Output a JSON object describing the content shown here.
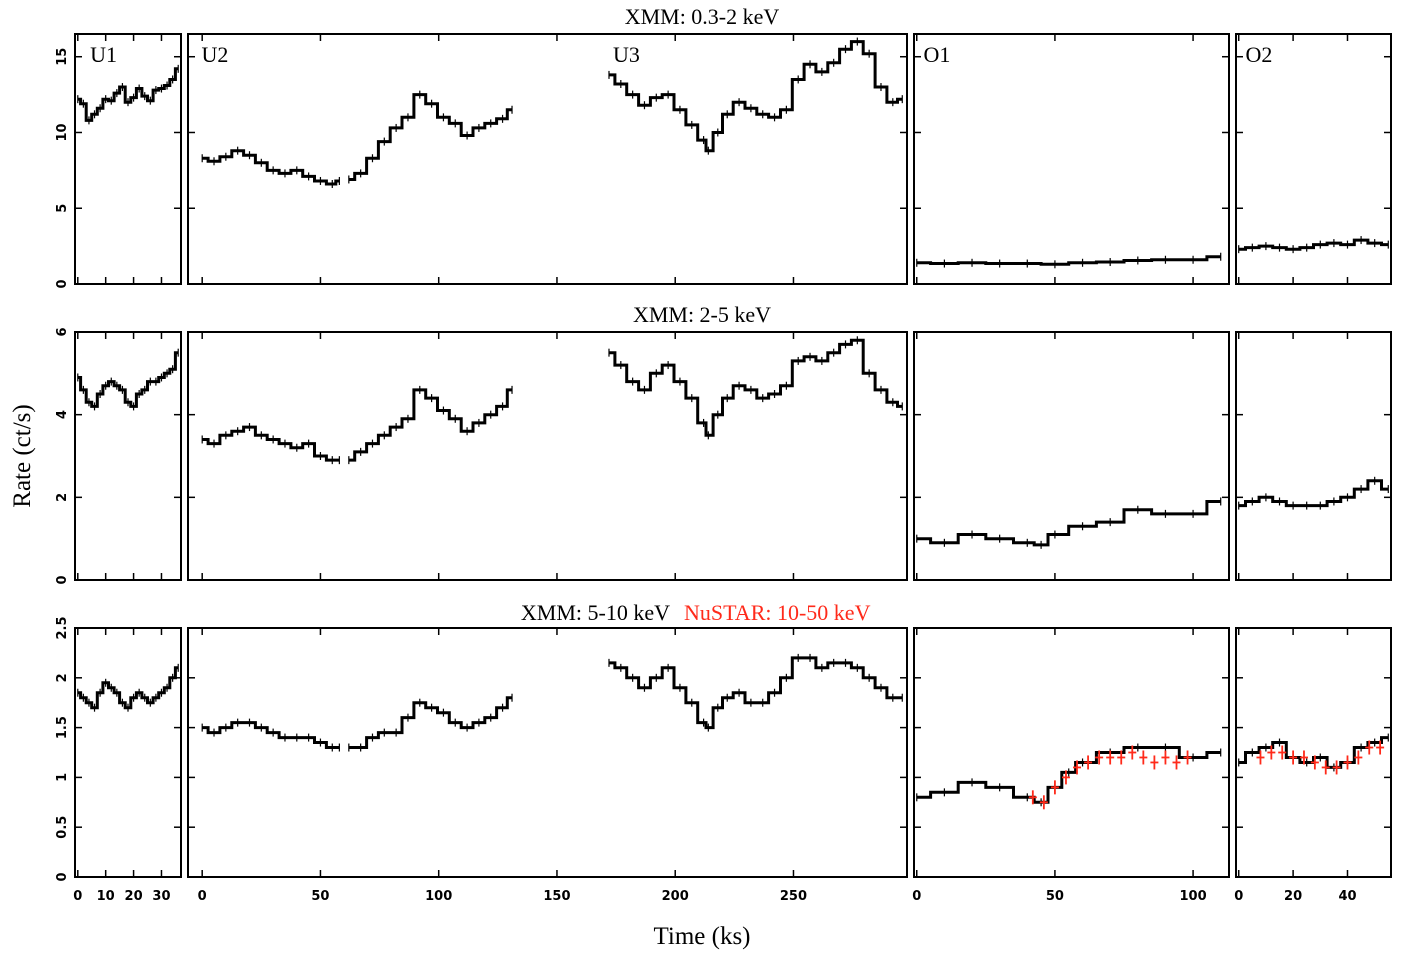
{
  "chart_data": {
    "type": "line",
    "x_label": "Time (ks)",
    "y_label": "Rate (ct/s)",
    "colors": {
      "xmm": "#000000",
      "nustar": "#ff2a1a"
    },
    "columns": [
      {
        "id": "U",
        "xlim": [
          -1,
          37
        ],
        "ticks": [
          0,
          10,
          20,
          30
        ],
        "tick_labels": [
          "0",
          "10",
          "20",
          "30"
        ]
      },
      {
        "id": "U23",
        "xlim": [
          -6,
          298
        ],
        "ticks": [
          0,
          50,
          100,
          150,
          200,
          250
        ],
        "tick_labels": [
          "0",
          "50",
          "100",
          "150",
          "200",
          "250"
        ]
      },
      {
        "id": "O1",
        "xlim": [
          -1,
          113
        ],
        "ticks": [
          0,
          50,
          100
        ],
        "tick_labels": [
          "0",
          "50",
          "100"
        ]
      },
      {
        "id": "O2",
        "xlim": [
          -1,
          56
        ],
        "ticks": [
          0,
          20,
          40
        ],
        "tick_labels": [
          "0",
          "20",
          "40"
        ]
      }
    ],
    "rows": [
      {
        "title": "XMM: 0.3-2 keV",
        "title_extra": "",
        "ylim": [
          0,
          16.5
        ],
        "yticks": [
          0,
          5,
          10,
          15
        ],
        "ytick_labels": [
          "0",
          "5",
          "10",
          "15"
        ],
        "segment_labels": [
          {
            "text": "U1",
            "column": 0,
            "x": 3
          },
          {
            "text": "U2",
            "column": 1,
            "x": -2
          },
          {
            "text": "U3",
            "column": 1,
            "x": 172
          },
          {
            "text": "O1",
            "column": 2,
            "x": 1
          },
          {
            "text": "O2",
            "column": 3,
            "x": 1
          }
        ],
        "series": [
          {
            "column": 0,
            "x": [
              0,
              2,
              4,
              6,
              8,
              10,
              12,
              14,
              16,
              18,
              20,
              22,
              24,
              26,
              28,
              30,
              32,
              34,
              36
            ],
            "y": [
              12.2,
              11.9,
              10.8,
              11.2,
              11.6,
              12.2,
              12.1,
              12.6,
              13.0,
              12.0,
              12.3,
              12.9,
              12.4,
              12.1,
              12.8,
              12.9,
              13.1,
              13.5,
              14.2
            ]
          },
          {
            "column": 1,
            "x": [
              0,
              5,
              10,
              15,
              20,
              25,
              30,
              35,
              40,
              45,
              50,
              55,
              58
            ],
            "y": [
              8.3,
              8.1,
              8.4,
              8.8,
              8.5,
              8.0,
              7.5,
              7.3,
              7.5,
              7.1,
              6.8,
              6.6,
              6.8
            ]
          },
          {
            "column": 1,
            "x": [
              62,
              67,
              72,
              77,
              82,
              87,
              92,
              97,
              102,
              107,
              112,
              117,
              122,
              127,
              131
            ],
            "y": [
              6.9,
              7.3,
              8.3,
              9.4,
              10.3,
              11.0,
              12.5,
              11.9,
              11.0,
              10.6,
              9.8,
              10.3,
              10.6,
              10.9,
              11.5
            ]
          },
          {
            "column": 1,
            "x": [
              172,
              177,
              182,
              187,
              192,
              197,
              202,
              207,
              212,
              214,
              218,
              222,
              227,
              232,
              237,
              242,
              247,
              252,
              257,
              262,
              267,
              272,
              277,
              282,
              287,
              292,
              296
            ],
            "y": [
              13.8,
              13.2,
              12.5,
              11.8,
              12.3,
              12.5,
              11.5,
              10.5,
              9.5,
              8.8,
              10.0,
              11.2,
              12.0,
              11.6,
              11.2,
              11.0,
              11.5,
              13.5,
              14.5,
              14.0,
              14.6,
              15.5,
              16.0,
              15.2,
              13.0,
              12.0,
              12.2
            ]
          },
          {
            "column": 2,
            "x": [
              0,
              10,
              20,
              30,
              40,
              50,
              60,
              70,
              80,
              90,
              100,
              110
            ],
            "y": [
              1.4,
              1.35,
              1.4,
              1.35,
              1.35,
              1.3,
              1.4,
              1.45,
              1.55,
              1.6,
              1.6,
              1.8
            ]
          },
          {
            "column": 3,
            "x": [
              0,
              5,
              10,
              15,
              20,
              25,
              30,
              35,
              40,
              45,
              50,
              55
            ],
            "y": [
              2.3,
              2.4,
              2.5,
              2.4,
              2.3,
              2.4,
              2.6,
              2.7,
              2.6,
              2.9,
              2.7,
              2.6
            ]
          }
        ]
      },
      {
        "title": "XMM: 2-5 keV",
        "title_extra": "",
        "ylim": [
          0,
          6
        ],
        "yticks": [
          0,
          2,
          4,
          6
        ],
        "ytick_labels": [
          "0",
          "2",
          "4",
          "6"
        ],
        "segment_labels": [],
        "series": [
          {
            "column": 0,
            "x": [
              0,
              2,
              4,
              6,
              8,
              10,
              12,
              14,
              16,
              18,
              20,
              22,
              24,
              26,
              28,
              30,
              32,
              34,
              36
            ],
            "y": [
              4.9,
              4.6,
              4.3,
              4.2,
              4.5,
              4.7,
              4.8,
              4.7,
              4.6,
              4.3,
              4.2,
              4.5,
              4.6,
              4.8,
              4.8,
              4.9,
              5.0,
              5.1,
              5.5
            ]
          },
          {
            "column": 1,
            "x": [
              0,
              5,
              10,
              15,
              20,
              25,
              30,
              35,
              40,
              45,
              50,
              55,
              58
            ],
            "y": [
              3.4,
              3.3,
              3.5,
              3.6,
              3.7,
              3.5,
              3.4,
              3.3,
              3.2,
              3.3,
              3.0,
              2.9,
              2.9
            ]
          },
          {
            "column": 1,
            "x": [
              62,
              67,
              72,
              77,
              82,
              87,
              92,
              97,
              102,
              107,
              112,
              117,
              122,
              127,
              131
            ],
            "y": [
              2.9,
              3.1,
              3.3,
              3.5,
              3.7,
              3.9,
              4.6,
              4.4,
              4.1,
              3.9,
              3.6,
              3.8,
              4.0,
              4.2,
              4.6
            ]
          },
          {
            "column": 1,
            "x": [
              172,
              177,
              182,
              187,
              192,
              197,
              202,
              207,
              212,
              214,
              218,
              222,
              227,
              232,
              237,
              242,
              247,
              252,
              257,
              262,
              267,
              272,
              277,
              282,
              287,
              292,
              296
            ],
            "y": [
              5.5,
              5.2,
              4.8,
              4.6,
              5.0,
              5.2,
              4.8,
              4.4,
              3.8,
              3.5,
              4.0,
              4.4,
              4.7,
              4.6,
              4.4,
              4.5,
              4.7,
              5.3,
              5.4,
              5.3,
              5.5,
              5.7,
              5.8,
              5.0,
              4.6,
              4.3,
              4.2
            ]
          },
          {
            "column": 2,
            "x": [
              0,
              10,
              20,
              30,
              40,
              45,
              50,
              60,
              70,
              80,
              90,
              100,
              110
            ],
            "y": [
              1.0,
              0.9,
              1.1,
              1.0,
              0.9,
              0.85,
              1.1,
              1.3,
              1.4,
              1.7,
              1.6,
              1.6,
              1.9
            ]
          },
          {
            "column": 3,
            "x": [
              0,
              5,
              10,
              15,
              20,
              25,
              30,
              35,
              40,
              45,
              50,
              55
            ],
            "y": [
              1.8,
              1.9,
              2.0,
              1.9,
              1.8,
              1.8,
              1.8,
              1.9,
              2.0,
              2.2,
              2.4,
              2.2
            ]
          }
        ]
      },
      {
        "title": "XMM: 5-10 keV",
        "title_extra": "NuSTAR: 10-50 keV",
        "ylim": [
          0,
          2.5
        ],
        "yticks": [
          0,
          0.5,
          1,
          1.5,
          2,
          2.5
        ],
        "ytick_labels": [
          "0",
          "0.5",
          "1",
          "1.5",
          "2",
          "2.5"
        ],
        "segment_labels": [],
        "series": [
          {
            "column": 0,
            "x": [
              0,
              2,
              4,
              6,
              8,
              10,
              12,
              14,
              16,
              18,
              20,
              22,
              24,
              26,
              28,
              30,
              32,
              34,
              36
            ],
            "y": [
              1.85,
              1.8,
              1.75,
              1.7,
              1.85,
              1.95,
              1.9,
              1.85,
              1.75,
              1.7,
              1.8,
              1.85,
              1.8,
              1.75,
              1.8,
              1.85,
              1.9,
              2.0,
              2.1
            ]
          },
          {
            "column": 1,
            "x": [
              0,
              5,
              10,
              15,
              20,
              25,
              30,
              35,
              40,
              45,
              50,
              55,
              58
            ],
            "y": [
              1.5,
              1.45,
              1.5,
              1.55,
              1.55,
              1.5,
              1.45,
              1.4,
              1.4,
              1.4,
              1.35,
              1.3,
              1.3
            ]
          },
          {
            "column": 1,
            "x": [
              62,
              67,
              72,
              77,
              82,
              87,
              92,
              97,
              102,
              107,
              112,
              117,
              122,
              127,
              131
            ],
            "y": [
              1.3,
              1.3,
              1.4,
              1.45,
              1.45,
              1.6,
              1.75,
              1.7,
              1.65,
              1.55,
              1.5,
              1.55,
              1.6,
              1.7,
              1.8
            ]
          },
          {
            "column": 1,
            "x": [
              172,
              177,
              182,
              187,
              192,
              197,
              202,
              207,
              212,
              214,
              218,
              222,
              227,
              232,
              237,
              242,
              247,
              252,
              257,
              262,
              267,
              272,
              277,
              282,
              287,
              292,
              296
            ],
            "y": [
              2.15,
              2.1,
              2.0,
              1.9,
              2.0,
              2.1,
              1.9,
              1.75,
              1.55,
              1.5,
              1.7,
              1.8,
              1.85,
              1.75,
              1.75,
              1.85,
              2.0,
              2.2,
              2.2,
              2.1,
              2.15,
              2.15,
              2.1,
              2.0,
              1.9,
              1.8,
              1.8
            ]
          },
          {
            "column": 2,
            "x": [
              0,
              10,
              20,
              30,
              40,
              45,
              50,
              55,
              60,
              70,
              80,
              90,
              100,
              110
            ],
            "y": [
              0.8,
              0.85,
              0.95,
              0.9,
              0.8,
              0.75,
              0.9,
              1.05,
              1.15,
              1.25,
              1.3,
              1.3,
              1.2,
              1.25
            ]
          },
          {
            "column": 3,
            "x": [
              0,
              5,
              10,
              15,
              20,
              25,
              30,
              35,
              40,
              45,
              50,
              55
            ],
            "y": [
              1.15,
              1.25,
              1.3,
              1.35,
              1.2,
              1.15,
              1.2,
              1.1,
              1.15,
              1.3,
              1.35,
              1.4
            ]
          },
          {
            "column": 2,
            "x": [
              42,
              46,
              50,
              54,
              58,
              62,
              66,
              70,
              74,
              78,
              82,
              86,
              90,
              94,
              98
            ],
            "y": [
              0.8,
              0.75,
              0.9,
              1.0,
              1.1,
              1.15,
              1.2,
              1.2,
              1.2,
              1.25,
              1.2,
              1.15,
              1.2,
              1.15,
              1.2
            ],
            "instrument": "nustar"
          },
          {
            "column": 3,
            "x": [
              8,
              12,
              16,
              20,
              24,
              28,
              32,
              36,
              40,
              44,
              48,
              52
            ],
            "y": [
              1.2,
              1.25,
              1.25,
              1.2,
              1.2,
              1.15,
              1.1,
              1.1,
              1.15,
              1.2,
              1.3,
              1.3
            ],
            "instrument": "nustar"
          }
        ]
      }
    ]
  }
}
